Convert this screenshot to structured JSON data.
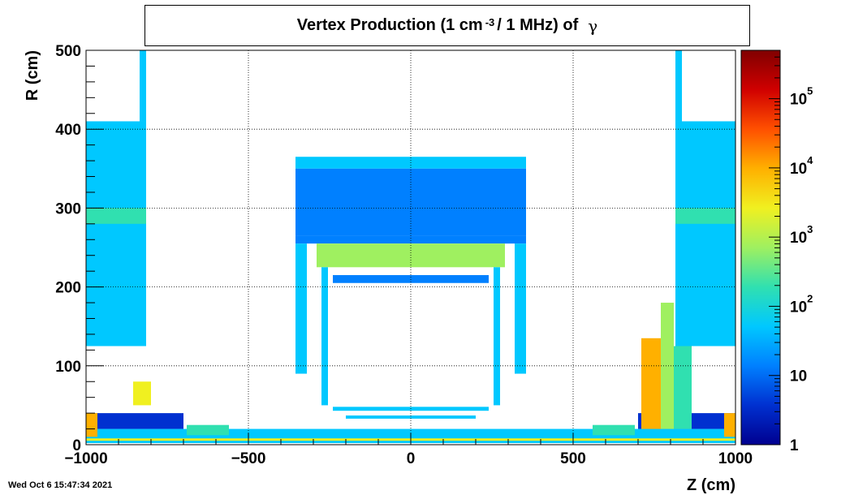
{
  "chart_data": {
    "type": "heatmap",
    "title": {
      "prefix": "Vertex Production (1 cm",
      "superscript": "-3",
      "suffix": "/ 1 MHz) of",
      "particle": "γ"
    },
    "xlabel": "Z (cm)",
    "ylabel": "R (cm)",
    "xlim": [
      -1000,
      1000
    ],
    "ylim": [
      0,
      500
    ],
    "x_ticks": [
      {
        "value": -1000,
        "label": "−1000"
      },
      {
        "value": -500,
        "label": "−500"
      },
      {
        "value": 0,
        "label": "0"
      },
      {
        "value": 500,
        "label": "500"
      },
      {
        "value": 1000,
        "label": "1000"
      }
    ],
    "y_ticks": [
      {
        "value": 0,
        "label": "0"
      },
      {
        "value": 100,
        "label": "100"
      },
      {
        "value": 200,
        "label": "200"
      },
      {
        "value": 300,
        "label": "300"
      },
      {
        "value": 400,
        "label": "400"
      },
      {
        "value": 500,
        "label": "500"
      }
    ],
    "z_scale": "log",
    "zlim": [
      1,
      500000
    ],
    "colorbar_ticks": [
      {
        "value": 1,
        "base": "1",
        "exp": ""
      },
      {
        "value": 10,
        "base": "10",
        "exp": ""
      },
      {
        "value": 100,
        "base": "10",
        "exp": "2"
      },
      {
        "value": 1000,
        "base": "10",
        "exp": "3"
      },
      {
        "value": 10000,
        "base": "10",
        "exp": "4"
      },
      {
        "value": 100000,
        "base": "10",
        "exp": "5"
      }
    ],
    "colormap": [
      "#00008f",
      "#0030d0",
      "#0080ff",
      "#00c8ff",
      "#30e0b0",
      "#9ff060",
      "#f0f020",
      "#ffb000",
      "#ff5000",
      "#d00000",
      "#800000"
    ],
    "grid": true,
    "regions": [
      {
        "z": [
          -1000,
          -815
        ],
        "r": [
          125,
          410
        ],
        "level": 60
      },
      {
        "z": [
          -1000,
          -815
        ],
        "r": [
          280,
          300
        ],
        "level": 100
      },
      {
        "z": [
          -835,
          -815
        ],
        "r": [
          410,
          500
        ],
        "level": 60
      },
      {
        "z": [
          815,
          1000
        ],
        "r": [
          125,
          410
        ],
        "level": 60
      },
      {
        "z": [
          815,
          1000
        ],
        "r": [
          280,
          300
        ],
        "level": 100
      },
      {
        "z": [
          815,
          835
        ],
        "r": [
          410,
          500
        ],
        "level": 60
      },
      {
        "z": [
          -355,
          355
        ],
        "r": [
          350,
          365
        ],
        "level": 30
      },
      {
        "z": [
          -355,
          355
        ],
        "r": [
          265,
          350
        ],
        "level": 8
      },
      {
        "z": [
          -355,
          355
        ],
        "r": [
          255,
          265
        ],
        "level": 15
      },
      {
        "z": [
          -290,
          290
        ],
        "r": [
          225,
          255
        ],
        "level": 500
      },
      {
        "z": [
          -355,
          -320
        ],
        "r": [
          90,
          255
        ],
        "level": 40
      },
      {
        "z": [
          320,
          355
        ],
        "r": [
          90,
          255
        ],
        "level": 40
      },
      {
        "z": [
          -275,
          -255
        ],
        "r": [
          50,
          225
        ],
        "level": 30
      },
      {
        "z": [
          255,
          275
        ],
        "r": [
          50,
          225
        ],
        "level": 30
      },
      {
        "z": [
          -240,
          240
        ],
        "r": [
          205,
          215
        ],
        "level": 15
      },
      {
        "z": [
          -240,
          240
        ],
        "r": [
          43,
          48
        ],
        "level": 30
      },
      {
        "z": [
          -200,
          200
        ],
        "r": [
          33,
          37
        ],
        "level": 30
      },
      {
        "z": [
          -1000,
          1000
        ],
        "r": [
          2,
          20
        ],
        "level": 40
      },
      {
        "z": [
          -1000,
          1000
        ],
        "r": [
          5,
          8
        ],
        "level": 4000
      },
      {
        "z": [
          -1000,
          -700
        ],
        "r": [
          20,
          40
        ],
        "level": 5
      },
      {
        "z": [
          700,
          1000
        ],
        "r": [
          20,
          40
        ],
        "level": 5
      },
      {
        "z": [
          -855,
          -800
        ],
        "r": [
          50,
          80
        ],
        "level": 1500
      },
      {
        "z": [
          -1000,
          -965
        ],
        "r": [
          10,
          40
        ],
        "level": 15000
      },
      {
        "z": [
          965,
          1000
        ],
        "r": [
          10,
          40
        ],
        "level": 15000
      },
      {
        "z": [
          710,
          775
        ],
        "r": [
          20,
          135
        ],
        "level": 12000
      },
      {
        "z": [
          770,
          810
        ],
        "r": [
          20,
          180
        ],
        "level": 400
      },
      {
        "z": [
          810,
          865
        ],
        "r": [
          20,
          125
        ],
        "level": 120
      },
      {
        "z": [
          -690,
          -560
        ],
        "r": [
          12,
          25
        ],
        "level": 150
      },
      {
        "z": [
          560,
          690
        ],
        "r": [
          12,
          25
        ],
        "level": 150
      }
    ]
  },
  "footer": {
    "timestamp": "Wed Oct  6 15:47:34 2021"
  }
}
